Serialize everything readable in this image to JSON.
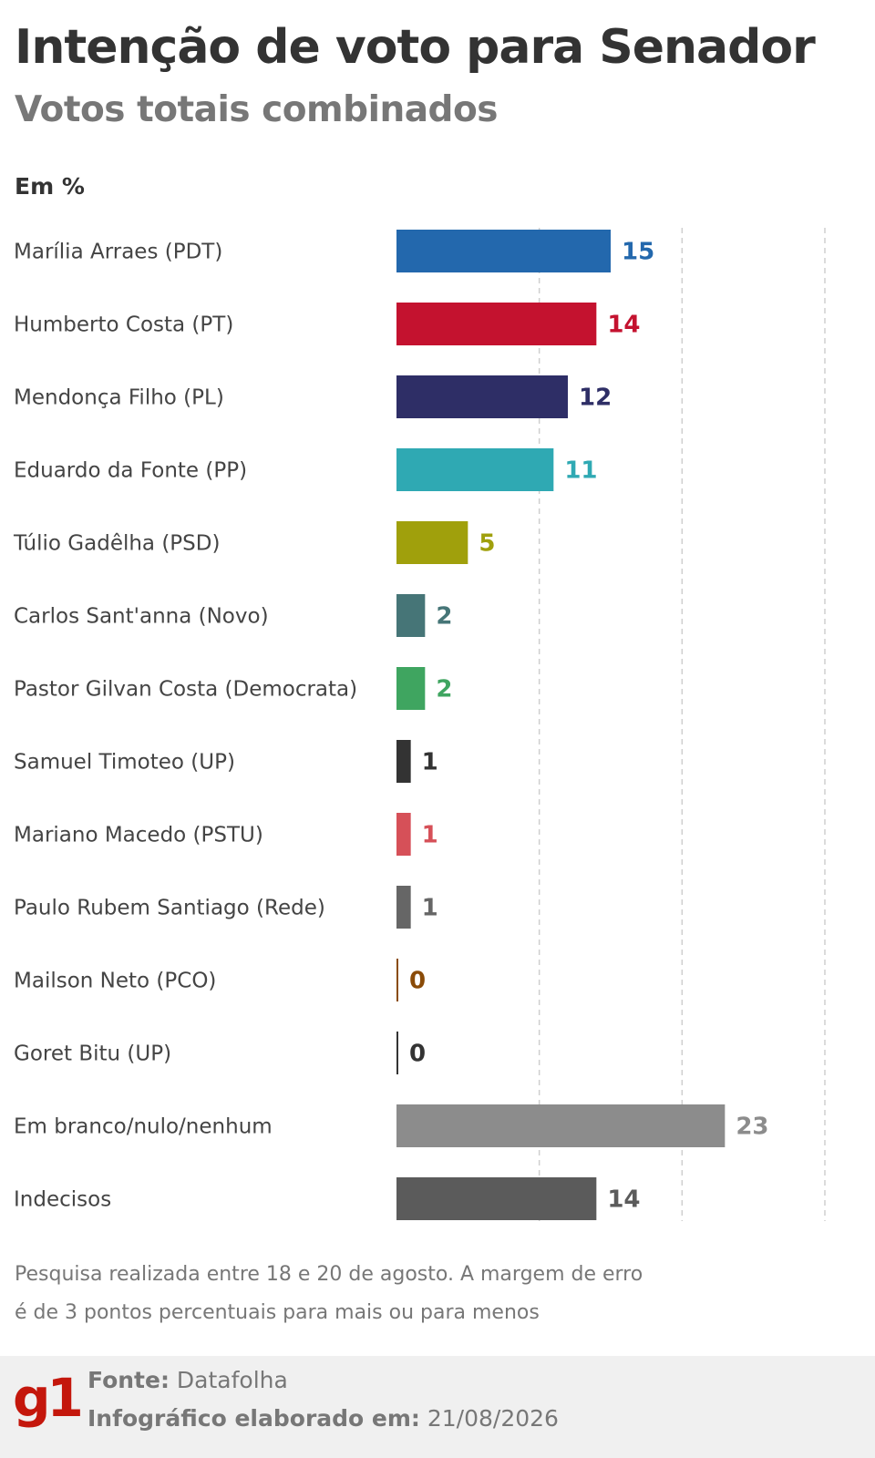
{
  "header": {
    "title": "Intenção de voto para Senador",
    "subtitle": "Votos totais combinados",
    "unit": "Em %"
  },
  "chart_data": {
    "type": "bar",
    "orientation": "horizontal",
    "xlim": [
      0,
      30
    ],
    "grid": true,
    "categories": [
      "Marília Arraes (PDT)",
      "Humberto Costa (PT)",
      "Mendonça Filho (PL)",
      "Eduardo da Fonte (PP)",
      "Túlio Gadêlha (PSD)",
      "Carlos Sant'anna (Novo)",
      "Pastor Gilvan Costa (Democrata)",
      "Samuel Timoteo (UP)",
      "Mariano Macedo (PSTU)",
      "Paulo Rubem Santiago (Rede)",
      "Mailson Neto (PCO)",
      "Goret Bitu (UP)",
      "Em branco/nulo/nenhum",
      "Indecisos"
    ],
    "values": [
      15,
      14,
      12,
      11,
      5,
      2,
      2,
      1,
      1,
      1,
      0,
      0,
      23,
      14
    ],
    "colors": [
      "#2368ad",
      "#c4122f",
      "#2e2e66",
      "#2fa9b3",
      "#a0a00c",
      "#467577",
      "#3fa560",
      "#333333",
      "#d65058",
      "#666666",
      "#8a4b08",
      "#333333",
      "#8c8c8c",
      "#5b5b5b"
    ],
    "label_colors": [
      "#2368ad",
      "#c4122f",
      "#2e2e66",
      "#2fa9b3",
      "#a0a00c",
      "#467577",
      "#3fa560",
      "#333333",
      "#d65058",
      "#666666",
      "#8a4b08",
      "#333333",
      "#8c8c8c",
      "#5b5b5b"
    ]
  },
  "note": "Pesquisa realizada entre 18 e 20 de agosto. A margem de erro é de 3 pontos percentuais para mais ou para menos",
  "footer": {
    "logo": "g1",
    "source_label": "Fonte:",
    "source_value": "Datafolha",
    "date_label": "Infográfico elaborado em:",
    "date_value": "21/08/2026"
  }
}
